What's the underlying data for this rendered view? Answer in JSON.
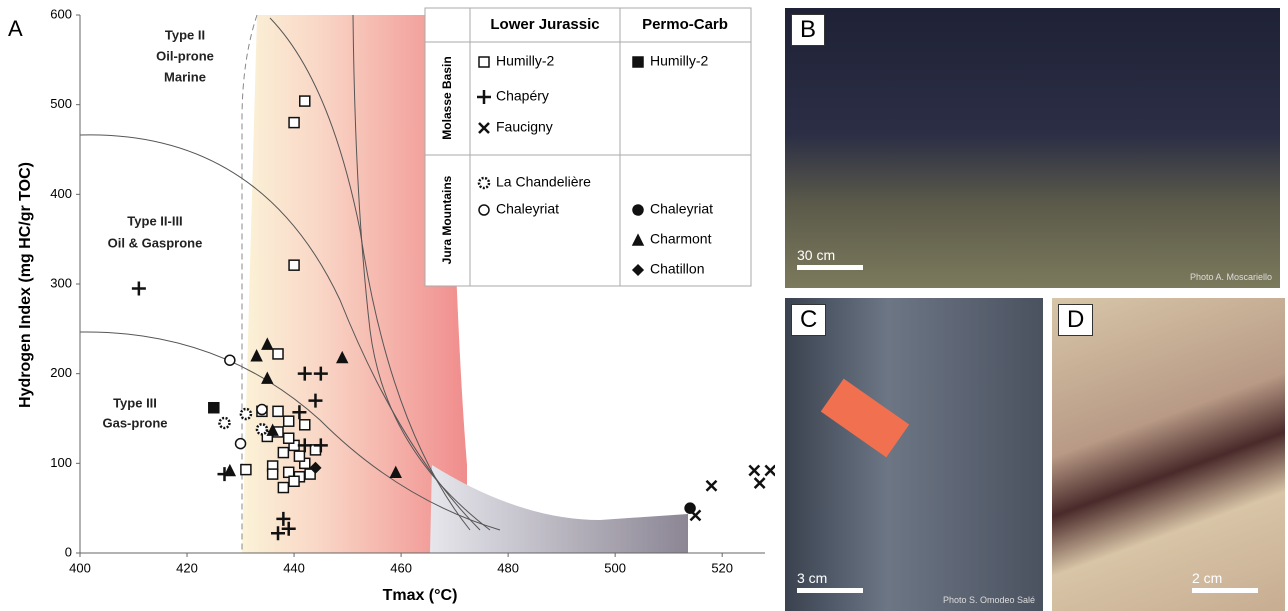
{
  "panel_label": "A",
  "chart_data": {
    "type": "scatter",
    "xlabel": "Tmax (°C)",
    "ylabel": "Hydrogen Index (mg HC/gr TOC)",
    "xlim": [
      400,
      528
    ],
    "xticks": [
      400,
      420,
      440,
      460,
      480,
      500,
      520
    ],
    "ylim": [
      0,
      600
    ],
    "yticks": [
      0,
      100,
      200,
      300,
      400,
      500,
      600
    ],
    "annotations": [
      "Type II",
      "Oil-prone",
      "Marine",
      "Type II-III",
      "Oil & Gasprone",
      "Type III",
      "Gas-prone"
    ],
    "legend_columns": [
      "Lower Jurassic",
      "Permo-Carb"
    ],
    "legend_groups": [
      "Molasse Basin",
      "Jura Mountains"
    ],
    "series": [
      {
        "name": "Humilly-2",
        "marker": "square",
        "filled": false,
        "x": [
          442,
          440,
          440,
          437,
          434,
          437,
          435,
          437,
          439,
          442,
          431,
          436,
          439,
          441,
          438,
          440,
          443,
          442,
          444,
          440,
          438,
          439,
          441,
          436
        ],
        "y": [
          504,
          480,
          321,
          222,
          158,
          158,
          130,
          135,
          147,
          143,
          93,
          97,
          90,
          85,
          73,
          80,
          88,
          100,
          115,
          120,
          112,
          128,
          108,
          88
        ]
      },
      {
        "name": "Chapéry",
        "marker": "plus",
        "filled": true,
        "x": [
          411,
          442,
          445,
          441,
          444,
          445,
          442,
          427,
          438,
          439,
          437
        ],
        "y": [
          295,
          200,
          200,
          157,
          170,
          120,
          120,
          88,
          38,
          27,
          22
        ]
      },
      {
        "name": "Faucigny",
        "marker": "cross",
        "filled": true,
        "x": [
          515,
          518,
          526,
          527,
          529
        ],
        "y": [
          42,
          75,
          92,
          78,
          92
        ]
      },
      {
        "name": "La Chandelière",
        "marker": "star",
        "filled": false,
        "x": [
          427,
          431,
          434
        ],
        "y": [
          145,
          155,
          138
        ]
      },
      {
        "name": "Chaleyriat",
        "marker": "circle",
        "filled": false,
        "x": [
          428,
          430,
          434
        ],
        "y": [
          215,
          122,
          160
        ]
      },
      {
        "name": "Humilly-2",
        "marker": "square",
        "filled": true,
        "x": [
          425
        ],
        "y": [
          162
        ]
      },
      {
        "name": "Chaleyriat",
        "marker": "circle",
        "filled": true,
        "x": [
          514
        ],
        "y": [
          50
        ]
      },
      {
        "name": "Charmont",
        "marker": "triangle",
        "filled": true,
        "x": [
          433,
          435,
          435,
          436,
          449,
          459,
          428
        ],
        "y": [
          220,
          233,
          195,
          137,
          218,
          90,
          92
        ]
      },
      {
        "name": "Chatillon",
        "marker": "diamond",
        "filled": true,
        "x": [
          444
        ],
        "y": [
          95
        ]
      }
    ]
  },
  "panels": [
    {
      "label": "B",
      "scale": "30 cm",
      "credit": "Photo A. Moscariello"
    },
    {
      "label": "C",
      "scale": "3 cm",
      "credit": "Photo S. Omodeo Salé"
    },
    {
      "label": "D",
      "scale": "2 cm"
    }
  ]
}
